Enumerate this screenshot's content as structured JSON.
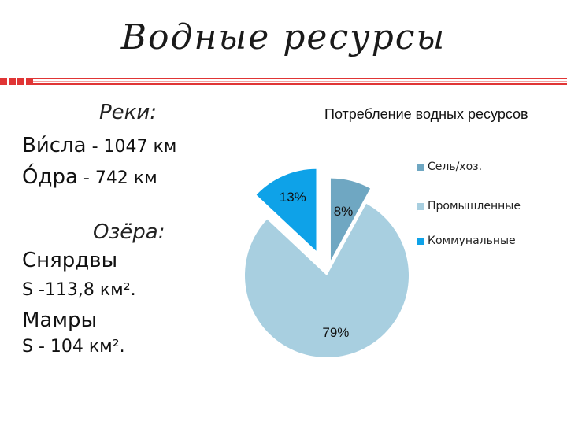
{
  "slide": {
    "title": "Водные ресурсы",
    "accent_color": "#e03535"
  },
  "left": {
    "rivers_heading": "Реки:",
    "rivers": [
      {
        "name": "Ви́сла",
        "value": " - 1047 км"
      },
      {
        "name": "О́дра",
        "value": " - 742 км"
      }
    ],
    "lakes_heading": "Озёра:",
    "lakes": [
      {
        "name": "Снярдвы",
        "area": "S -113,8 км²."
      },
      {
        "name": "Мамры",
        "area": "S - 104 км²."
      }
    ]
  },
  "chart_data": {
    "type": "pie",
    "title": "Потребление водных ресурсов",
    "legend_position": "right",
    "categories": [
      "Сель/хоз.",
      "Промышленные",
      "Коммунальные"
    ],
    "values": [
      8,
      79,
      13
    ],
    "labels": [
      "8%",
      "79%",
      "13%"
    ],
    "colors": [
      "#6fa7c2",
      "#a8cfe0",
      "#0ea2e8"
    ],
    "exploded": true
  }
}
